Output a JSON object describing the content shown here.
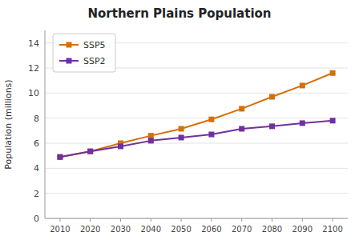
{
  "chart_data": {
    "type": "line",
    "title": "Northern Plains Population",
    "y_label": "Population (millions)",
    "x": [
      2010,
      2020,
      2030,
      2040,
      2050,
      2060,
      2070,
      2080,
      2090,
      2100
    ],
    "xlim": [
      2005,
      2105
    ],
    "xticks": [
      2010,
      2020,
      2030,
      2040,
      2050,
      2060,
      2070,
      2080,
      2090,
      2100
    ],
    "ylim": [
      0,
      15
    ],
    "yticks": [
      0,
      2,
      4,
      6,
      8,
      10,
      12,
      14
    ],
    "grid": true,
    "legend": "upper left",
    "series": [
      {
        "name": "SSP5",
        "color": "#D4700A",
        "marker": "square",
        "values": [
          4.9,
          5.35,
          6.0,
          6.6,
          7.15,
          7.9,
          8.75,
          9.7,
          10.6,
          11.6
        ]
      },
      {
        "name": "SSP2",
        "color": "#7030A0",
        "marker": "square",
        "values": [
          4.9,
          5.35,
          5.75,
          6.2,
          6.45,
          6.7,
          7.15,
          7.35,
          7.6,
          7.8
        ]
      }
    ]
  }
}
